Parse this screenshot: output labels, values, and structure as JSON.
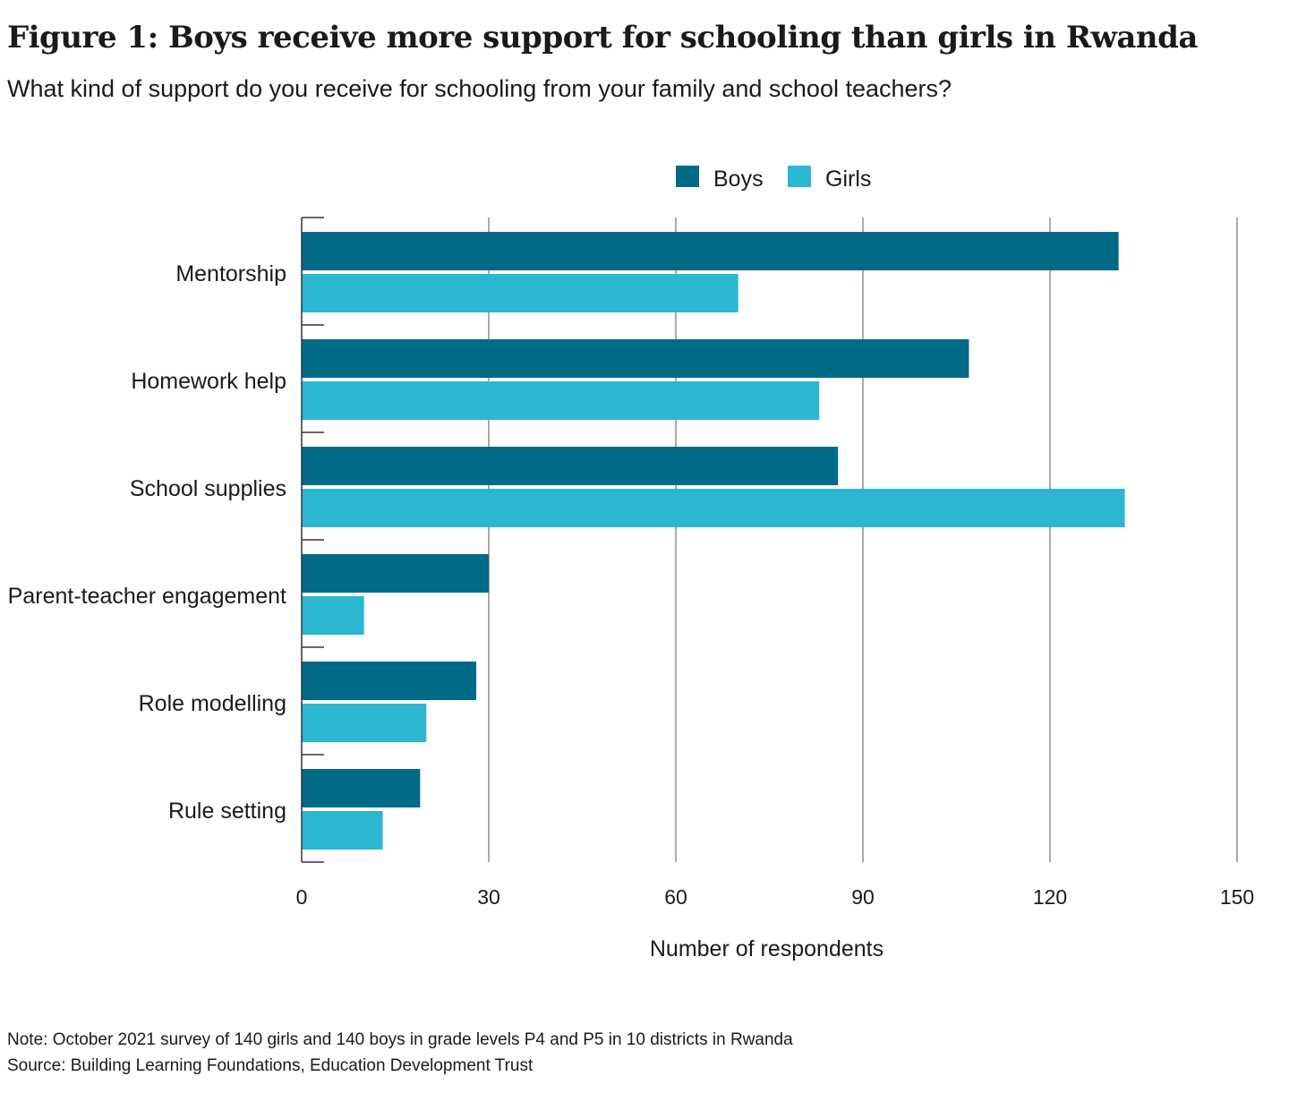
{
  "header": {
    "title": "Figure 1: Boys receive more support for schooling than girls in Rwanda",
    "subtitle": "What kind of support do you receive for schooling from your family and school teachers?"
  },
  "chart_data": {
    "type": "bar",
    "orientation": "horizontal",
    "categories": [
      "Mentorship",
      "Homework help",
      "School supplies",
      "Parent-teacher engagement",
      "Role modelling",
      "Rule setting"
    ],
    "series": [
      {
        "name": "Boys",
        "color": "#006a87",
        "values": [
          131,
          107,
          86,
          30,
          28,
          19
        ]
      },
      {
        "name": "Girls",
        "color": "#2ab7cf",
        "values": [
          70,
          83,
          132,
          10,
          20,
          13
        ]
      }
    ],
    "xlabel": "Number of respondents",
    "ylabel": "",
    "xlim": [
      0,
      150
    ],
    "xticks": [
      0,
      30,
      60,
      90,
      120,
      150
    ],
    "grid": true,
    "legend": "top-center"
  },
  "footer": {
    "note": "Note: October 2021 survey of 140 girls and 140 boys in grade levels P4 and P5 in 10 districts in Rwanda",
    "source": "Source: Building Learning Foundations, Education Development Trust"
  }
}
